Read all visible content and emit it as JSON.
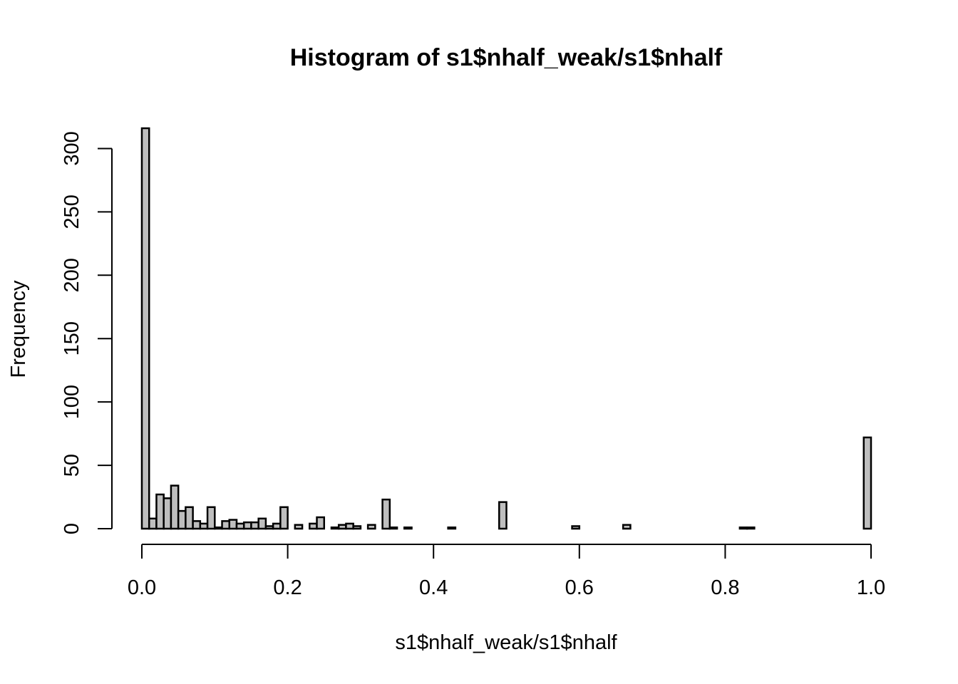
{
  "chart_data": {
    "type": "bar",
    "title": "Histogram of s1$nhalf_weak/s1$nhalf",
    "xlabel": "s1$nhalf_weak/s1$nhalf",
    "ylabel": "Frequency",
    "xlim": [
      0,
      1
    ],
    "ylim": [
      0,
      316
    ],
    "bin_width": 0.01,
    "x_ticks": [
      0,
      0.2,
      0.4,
      0.6,
      0.8,
      1.0
    ],
    "x_tick_labels": [
      "0.0",
      "0.2",
      "0.4",
      "0.6",
      "0.8",
      "1.0"
    ],
    "y_ticks": [
      0,
      50,
      100,
      150,
      200,
      250,
      300
    ],
    "y_tick_labels": [
      "0",
      "50",
      "100",
      "150",
      "200",
      "250",
      "300"
    ],
    "grid": false,
    "legend": "none",
    "bar_fill": "#bebebe",
    "bar_stroke": "#000000",
    "bins": [
      {
        "x0": 0.0,
        "count": 316
      },
      {
        "x0": 0.01,
        "count": 8
      },
      {
        "x0": 0.02,
        "count": 27
      },
      {
        "x0": 0.03,
        "count": 24
      },
      {
        "x0": 0.04,
        "count": 34
      },
      {
        "x0": 0.05,
        "count": 14
      },
      {
        "x0": 0.06,
        "count": 17
      },
      {
        "x0": 0.07,
        "count": 6
      },
      {
        "x0": 0.08,
        "count": 4
      },
      {
        "x0": 0.09,
        "count": 17
      },
      {
        "x0": 0.1,
        "count": 1
      },
      {
        "x0": 0.11,
        "count": 6
      },
      {
        "x0": 0.12,
        "count": 7
      },
      {
        "x0": 0.13,
        "count": 4
      },
      {
        "x0": 0.14,
        "count": 5
      },
      {
        "x0": 0.15,
        "count": 5
      },
      {
        "x0": 0.16,
        "count": 8
      },
      {
        "x0": 0.17,
        "count": 2
      },
      {
        "x0": 0.18,
        "count": 4
      },
      {
        "x0": 0.19,
        "count": 17
      },
      {
        "x0": 0.21,
        "count": 3
      },
      {
        "x0": 0.23,
        "count": 4
      },
      {
        "x0": 0.24,
        "count": 9
      },
      {
        "x0": 0.26,
        "count": 1
      },
      {
        "x0": 0.27,
        "count": 3
      },
      {
        "x0": 0.28,
        "count": 4
      },
      {
        "x0": 0.29,
        "count": 2
      },
      {
        "x0": 0.31,
        "count": 3
      },
      {
        "x0": 0.33,
        "count": 23
      },
      {
        "x0": 0.34,
        "count": 1
      },
      {
        "x0": 0.36,
        "count": 1
      },
      {
        "x0": 0.42,
        "count": 1
      },
      {
        "x0": 0.49,
        "count": 21
      },
      {
        "x0": 0.59,
        "count": 2
      },
      {
        "x0": 0.66,
        "count": 3
      },
      {
        "x0": 0.82,
        "count": 1
      },
      {
        "x0": 0.83,
        "count": 1
      },
      {
        "x0": 0.99,
        "count": 72
      }
    ]
  }
}
